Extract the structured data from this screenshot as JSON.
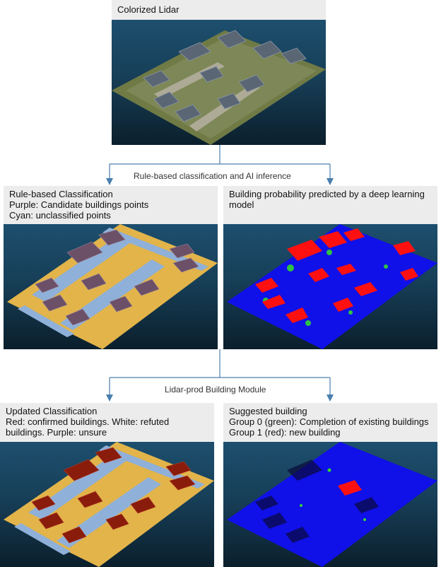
{
  "top": {
    "title": "Colorized Lidar"
  },
  "step1": {
    "label": "Rule-based classification and AI inference"
  },
  "step2": {
    "label": "Lidar-prod Building Module"
  },
  "panels": {
    "rule_based": {
      "lines": [
        "Rule-based Classification",
        "Purple: Candidate buildings points",
        "Cyan: unclassified points"
      ]
    },
    "probability": {
      "lines": [
        "Building probability predicted by a deep learning",
        "model"
      ]
    },
    "updated": {
      "lines": [
        "Updated Classification",
        "Red: confirmed buildings. White: refuted",
        "buildings. Purple: unsure"
      ]
    },
    "suggested": {
      "lines": [
        "Suggested building",
        "Group 0 (green): Completion of existing buildings",
        "Group 1 (red): new building"
      ]
    }
  },
  "colors": {
    "connector": "#4a7fae",
    "sky_top": "#1d4f6e",
    "sky_bottom": "#0b1f2c",
    "ground_rule": "#e2b44a",
    "unclassified": "#8fb0d8",
    "candidate": "#6b5068",
    "prob_low": "#1010e8",
    "prob_high": "#ff1010",
    "prob_mid": "#33d633",
    "confirmed": "#8a1c0c"
  }
}
